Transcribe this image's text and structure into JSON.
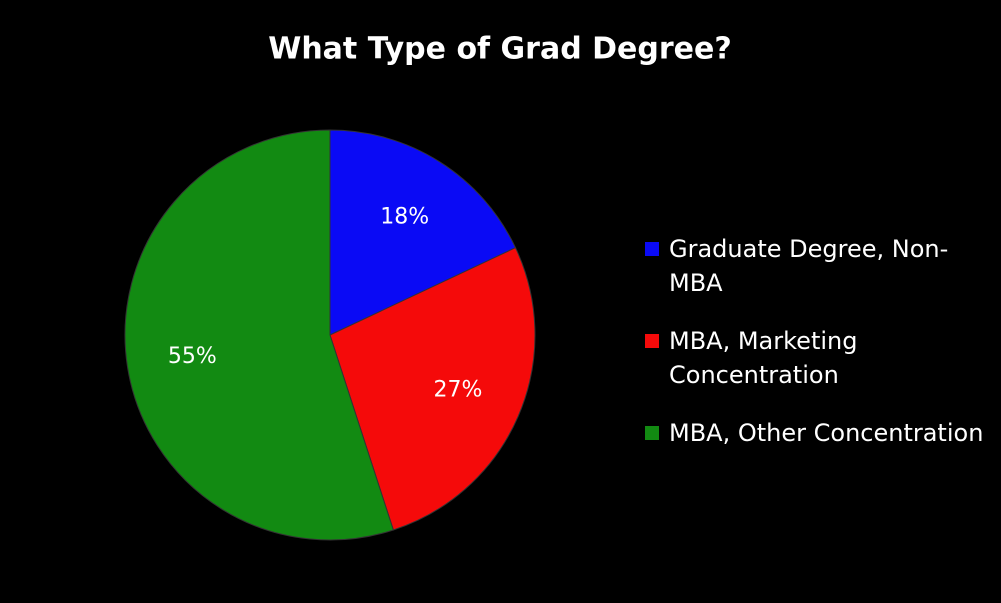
{
  "chart_data": {
    "type": "pie",
    "title": "What Type of Grad Degree?",
    "categories": [
      "Graduate Degree, Non-MBA",
      "MBA, Marketing Concentration",
      "MBA, Other Concentration"
    ],
    "values": [
      18,
      27,
      55
    ],
    "value_labels": [
      "18%",
      "27%",
      "55%"
    ],
    "colors": [
      "#0a0af5",
      "#f50a0a",
      "#128a12"
    ],
    "legend": "right"
  }
}
